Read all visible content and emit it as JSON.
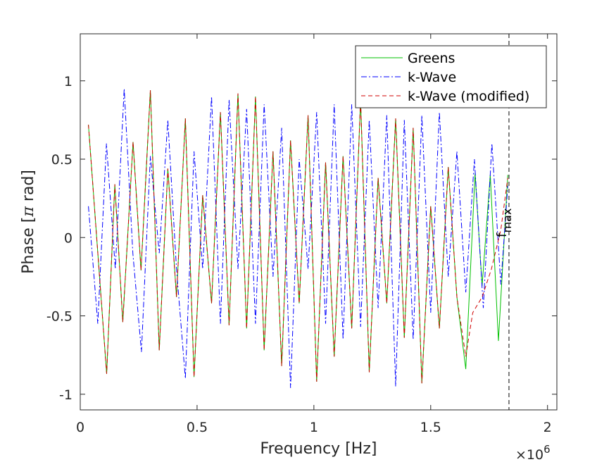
{
  "chart_data": {
    "type": "line",
    "xlabel": "Frequency [Hz]",
    "ylabel_prefix": "Phase [",
    "ylabel_symbol": "π",
    "ylabel_suffix": " rad]",
    "x_exponent_base": "×10",
    "x_exponent_power": "6",
    "xlim": [
      0,
      2.04
    ],
    "ylim": [
      -1.1,
      1.3
    ],
    "x_ticks": [
      0,
      0.5,
      1,
      1.5,
      2
    ],
    "x_tick_labels": [
      "0",
      "0.5",
      "1",
      "1.5",
      "2"
    ],
    "y_ticks": [
      -1,
      -0.5,
      0,
      0.5,
      1
    ],
    "y_tick_labels": [
      "-1",
      "-0.5",
      "0",
      "0.5",
      "1"
    ],
    "grid": false,
    "legend_position": "top-right",
    "annotation": {
      "label": "f",
      "subscript": "max",
      "x": 1.835
    },
    "series": [
      {
        "name": "Greens",
        "color": "#00c000",
        "dash": "solid",
        "x": [
          0.035,
          0.113,
          0.148,
          0.182,
          0.226,
          0.26,
          0.3,
          0.338,
          0.375,
          0.412,
          0.45,
          0.487,
          0.524,
          0.562,
          0.6,
          0.637,
          0.675,
          0.712,
          0.75,
          0.787,
          0.825,
          0.862,
          0.9,
          0.937,
          0.975,
          1.012,
          1.05,
          1.087,
          1.125,
          1.162,
          1.2,
          1.237,
          1.275,
          1.312,
          1.35,
          1.387,
          1.425,
          1.462,
          1.5,
          1.537,
          1.575,
          1.612,
          1.65,
          1.69,
          1.72,
          1.755,
          1.79,
          1.83
        ],
        "y": [
          0.72,
          -0.87,
          0.34,
          -0.54,
          0.61,
          -0.21,
          0.94,
          -0.72,
          0.44,
          -0.38,
          0.76,
          -0.89,
          0.27,
          -0.42,
          0.8,
          -0.56,
          0.92,
          -0.58,
          0.9,
          -0.72,
          0.55,
          -0.82,
          0.62,
          -0.42,
          0.78,
          -0.92,
          0.48,
          -0.76,
          0.52,
          -0.58,
          0.88,
          -0.86,
          0.38,
          -0.42,
          0.76,
          -0.64,
          0.7,
          -0.93,
          0.2,
          -0.58,
          0.45,
          -0.38,
          -0.84,
          0.41,
          -0.31,
          0.4,
          -0.66,
          0.4
        ]
      },
      {
        "name": "k-Wave",
        "color": "#0000ff",
        "dash": "dashdot",
        "x": [
          0.035,
          0.075,
          0.112,
          0.15,
          0.188,
          0.225,
          0.262,
          0.3,
          0.338,
          0.375,
          0.412,
          0.45,
          0.487,
          0.524,
          0.562,
          0.6,
          0.637,
          0.675,
          0.712,
          0.75,
          0.787,
          0.825,
          0.862,
          0.9,
          0.937,
          0.975,
          1.012,
          1.05,
          1.087,
          1.125,
          1.162,
          1.2,
          1.237,
          1.275,
          1.312,
          1.35,
          1.387,
          1.425,
          1.462,
          1.5,
          1.537,
          1.575,
          1.612,
          1.65,
          1.687,
          1.725,
          1.762,
          1.8,
          1.83
        ],
        "y": [
          0.2,
          -0.55,
          0.6,
          -0.2,
          0.95,
          -0.1,
          -0.73,
          0.52,
          -0.1,
          0.75,
          -0.2,
          -0.9,
          0.55,
          -0.2,
          0.9,
          -0.55,
          0.88,
          -0.2,
          0.82,
          -0.55,
          0.85,
          -0.25,
          0.7,
          -0.96,
          0.5,
          -0.2,
          0.8,
          -0.55,
          0.85,
          -0.65,
          0.85,
          -0.57,
          0.75,
          -0.45,
          0.78,
          -0.95,
          0.75,
          -0.65,
          0.78,
          -0.48,
          0.8,
          -0.25,
          0.55,
          -0.35,
          0.5,
          -0.45,
          0.6,
          -0.3,
          0.33
        ]
      },
      {
        "name": "k-Wave (modified)",
        "color": "#d00000",
        "dash": "dashed",
        "x": [
          0.035,
          0.113,
          0.148,
          0.182,
          0.226,
          0.26,
          0.3,
          0.338,
          0.375,
          0.412,
          0.45,
          0.487,
          0.524,
          0.562,
          0.6,
          0.637,
          0.675,
          0.712,
          0.75,
          0.787,
          0.825,
          0.862,
          0.9,
          0.937,
          0.975,
          1.012,
          1.05,
          1.087,
          1.125,
          1.162,
          1.2,
          1.237,
          1.275,
          1.312,
          1.35,
          1.387,
          1.425,
          1.462,
          1.5,
          1.537,
          1.575,
          1.612,
          1.65,
          1.68,
          1.72,
          1.76,
          1.8,
          1.83
        ],
        "y": [
          0.72,
          -0.87,
          0.34,
          -0.54,
          0.61,
          -0.21,
          0.94,
          -0.72,
          0.44,
          -0.38,
          0.76,
          -0.89,
          0.27,
          -0.42,
          0.8,
          -0.56,
          0.92,
          -0.58,
          0.9,
          -0.72,
          0.55,
          -0.82,
          0.62,
          -0.42,
          0.78,
          -0.92,
          0.48,
          -0.76,
          0.52,
          -0.58,
          0.88,
          -0.86,
          0.38,
          -0.42,
          0.76,
          -0.64,
          0.7,
          -0.93,
          0.2,
          -0.58,
          0.45,
          -0.38,
          -0.76,
          -0.48,
          -0.38,
          -0.2,
          0.05,
          0.38
        ]
      }
    ]
  }
}
